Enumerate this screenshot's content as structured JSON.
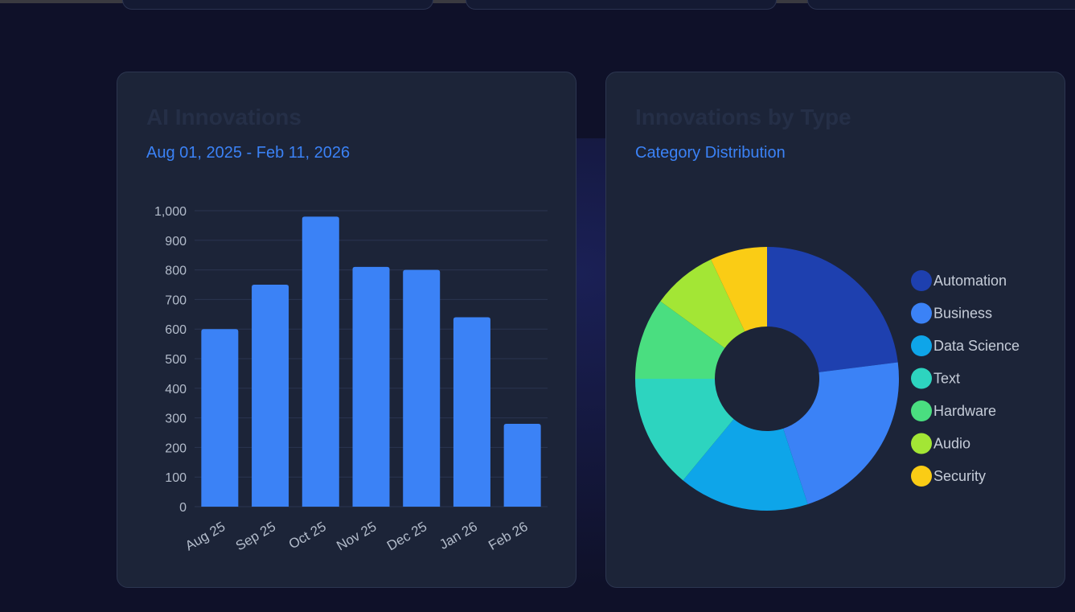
{
  "colors": {
    "background": "#0f1129",
    "card": "#1c2438",
    "accent": "#3b82f6",
    "grid": "#2a3450",
    "tick_text": "#b3bccb"
  },
  "bar_card": {
    "title": "AI Innovations",
    "subtitle": "Aug 01, 2025 - Feb 11, 2026"
  },
  "pie_card": {
    "title": "Innovations by Type",
    "subtitle": "Category Distribution"
  },
  "chart_data": [
    {
      "type": "bar",
      "title": "AI Innovations",
      "subtitle": "Aug 01, 2025 - Feb 11, 2026",
      "categories": [
        "Aug 25",
        "Sep 25",
        "Oct 25",
        "Nov 25",
        "Dec 25",
        "Jan 26",
        "Feb 26"
      ],
      "values": [
        600,
        750,
        980,
        810,
        800,
        640,
        280
      ],
      "ylim": [
        0,
        1000
      ],
      "yticks": [
        0,
        100,
        200,
        300,
        400,
        500,
        600,
        700,
        800,
        900,
        1000
      ],
      "ytick_labels": [
        "0",
        "100",
        "200",
        "300",
        "400",
        "500",
        "600",
        "700",
        "800",
        "900",
        "1,000"
      ],
      "xlabel": "",
      "ylabel": "",
      "grid": true,
      "bar_color": "#3b82f6"
    },
    {
      "type": "pie",
      "style": "donut",
      "title": "Innovations by Type",
      "subtitle": "Category Distribution",
      "legend_position": "right",
      "slices": [
        {
          "label": "Automation",
          "value": 23,
          "color": "#1e40af"
        },
        {
          "label": "Business",
          "value": 22,
          "color": "#3b82f6"
        },
        {
          "label": "Data Science",
          "value": 16,
          "color": "#0ea5e9"
        },
        {
          "label": "Text",
          "value": 14,
          "color": "#2dd4bf"
        },
        {
          "label": "Hardware",
          "value": 10,
          "color": "#4ade80"
        },
        {
          "label": "Audio",
          "value": 8,
          "color": "#a3e635"
        },
        {
          "label": "Security",
          "value": 7,
          "color": "#facc15"
        }
      ]
    }
  ]
}
